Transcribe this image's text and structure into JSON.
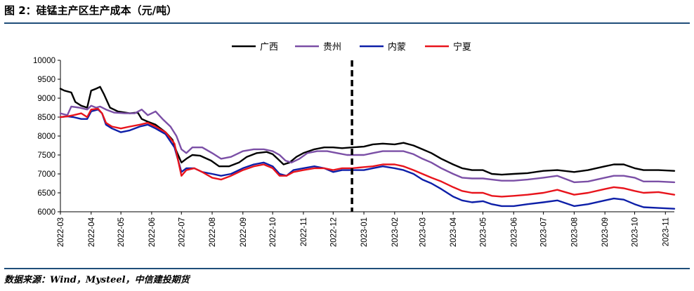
{
  "figure": {
    "title": "图 2：硅锰主产区生产成本（元/吨）",
    "source": "数据来源：Wind，Mysteel，中信建投期货"
  },
  "chart_data": {
    "type": "line",
    "title": "",
    "xlabel": "",
    "ylabel": "",
    "ylim": [
      6000,
      10000
    ],
    "y_ticks": [
      "6000",
      "6500",
      "7000",
      "7500",
      "8000",
      "8500",
      "9000",
      "9500",
      "10000"
    ],
    "x_ticks": [
      "2022-03",
      "2022-04",
      "2022-05",
      "2022-06",
      "2022-07",
      "2022-08",
      "2022-09",
      "2022-10",
      "2022-11",
      "2022-12",
      "2023-01",
      "2023-02",
      "2023-03",
      "2023-04",
      "2023-05",
      "2023-06",
      "2023-07",
      "2023-08",
      "2023-09",
      "2023-10",
      "2023-11"
    ],
    "x_range": [
      "2022-03-01",
      "2023-11-10"
    ],
    "grid": false,
    "legend_position": "top-center",
    "annotations": [
      {
        "type": "vertical-dashed-line",
        "x": "2022-12-20"
      }
    ],
    "series": [
      {
        "name": "广西",
        "color": "#000000",
        "points": [
          [
            "2022-03-01",
            9250
          ],
          [
            "2022-03-05",
            9200
          ],
          [
            "2022-03-12",
            9150
          ],
          [
            "2022-03-16",
            8900
          ],
          [
            "2022-03-22",
            8800
          ],
          [
            "2022-03-28",
            8750
          ],
          [
            "2022-04-01",
            9200
          ],
          [
            "2022-04-06",
            9250
          ],
          [
            "2022-04-10",
            9300
          ],
          [
            "2022-04-14",
            9100
          ],
          [
            "2022-04-20",
            8750
          ],
          [
            "2022-04-28",
            8650
          ],
          [
            "2022-05-10",
            8600
          ],
          [
            "2022-05-18",
            8620
          ],
          [
            "2022-05-22",
            8450
          ],
          [
            "2022-05-28",
            8380
          ],
          [
            "2022-06-05",
            8300
          ],
          [
            "2022-06-15",
            8100
          ],
          [
            "2022-06-22",
            7900
          ],
          [
            "2022-06-26",
            7600
          ],
          [
            "2022-07-01",
            7300
          ],
          [
            "2022-07-06",
            7400
          ],
          [
            "2022-07-12",
            7500
          ],
          [
            "2022-07-20",
            7480
          ],
          [
            "2022-07-31",
            7350
          ],
          [
            "2022-08-08",
            7200
          ],
          [
            "2022-08-18",
            7200
          ],
          [
            "2022-08-28",
            7300
          ],
          [
            "2022-09-05",
            7450
          ],
          [
            "2022-09-15",
            7550
          ],
          [
            "2022-09-25",
            7580
          ],
          [
            "2022-10-01",
            7520
          ],
          [
            "2022-10-06",
            7400
          ],
          [
            "2022-10-12",
            7250
          ],
          [
            "2022-10-18",
            7300
          ],
          [
            "2022-10-25",
            7450
          ],
          [
            "2022-11-01",
            7550
          ],
          [
            "2022-11-12",
            7650
          ],
          [
            "2022-11-22",
            7700
          ],
          [
            "2022-12-01",
            7700
          ],
          [
            "2022-12-10",
            7680
          ],
          [
            "2022-12-20",
            7700
          ],
          [
            "2023-01-01",
            7720
          ],
          [
            "2023-01-10",
            7780
          ],
          [
            "2023-01-20",
            7800
          ],
          [
            "2023-02-01",
            7780
          ],
          [
            "2023-02-10",
            7820
          ],
          [
            "2023-02-20",
            7750
          ],
          [
            "2023-03-01",
            7650
          ],
          [
            "2023-03-10",
            7550
          ],
          [
            "2023-03-20",
            7400
          ],
          [
            "2023-04-01",
            7250
          ],
          [
            "2023-04-10",
            7150
          ],
          [
            "2023-04-20",
            7100
          ],
          [
            "2023-05-01",
            7100
          ],
          [
            "2023-05-10",
            7000
          ],
          [
            "2023-05-20",
            6980
          ],
          [
            "2023-06-01",
            7000
          ],
          [
            "2023-06-15",
            7020
          ],
          [
            "2023-07-01",
            7080
          ],
          [
            "2023-07-15",
            7100
          ],
          [
            "2023-08-01",
            7050
          ],
          [
            "2023-08-15",
            7100
          ],
          [
            "2023-09-01",
            7200
          ],
          [
            "2023-09-10",
            7250
          ],
          [
            "2023-09-20",
            7250
          ],
          [
            "2023-10-01",
            7150
          ],
          [
            "2023-10-10",
            7100
          ],
          [
            "2023-10-25",
            7100
          ],
          [
            "2023-11-10",
            7080
          ]
        ]
      },
      {
        "name": "贵州",
        "color": "#7b4fa6",
        "points": [
          [
            "2022-03-01",
            8600
          ],
          [
            "2022-03-08",
            8550
          ],
          [
            "2022-03-12",
            8780
          ],
          [
            "2022-03-20",
            8750
          ],
          [
            "2022-03-28",
            8700
          ],
          [
            "2022-04-01",
            8800
          ],
          [
            "2022-04-06",
            8750
          ],
          [
            "2022-04-10",
            8780
          ],
          [
            "2022-04-16",
            8700
          ],
          [
            "2022-04-24",
            8620
          ],
          [
            "2022-05-05",
            8600
          ],
          [
            "2022-05-15",
            8600
          ],
          [
            "2022-05-22",
            8700
          ],
          [
            "2022-05-28",
            8550
          ],
          [
            "2022-06-05",
            8650
          ],
          [
            "2022-06-12",
            8450
          ],
          [
            "2022-06-20",
            8250
          ],
          [
            "2022-06-26",
            8000
          ],
          [
            "2022-07-01",
            7650
          ],
          [
            "2022-07-06",
            7550
          ],
          [
            "2022-07-12",
            7700
          ],
          [
            "2022-07-22",
            7700
          ],
          [
            "2022-08-01",
            7550
          ],
          [
            "2022-08-10",
            7400
          ],
          [
            "2022-08-20",
            7450
          ],
          [
            "2022-09-01",
            7600
          ],
          [
            "2022-09-12",
            7650
          ],
          [
            "2022-09-22",
            7650
          ],
          [
            "2022-10-01",
            7600
          ],
          [
            "2022-10-08",
            7500
          ],
          [
            "2022-10-14",
            7350
          ],
          [
            "2022-10-20",
            7300
          ],
          [
            "2022-10-28",
            7400
          ],
          [
            "2022-11-05",
            7550
          ],
          [
            "2022-11-15",
            7600
          ],
          [
            "2022-11-25",
            7600
          ],
          [
            "2022-12-05",
            7550
          ],
          [
            "2022-12-15",
            7500
          ],
          [
            "2022-12-22",
            7500
          ],
          [
            "2023-01-01",
            7500
          ],
          [
            "2023-01-10",
            7550
          ],
          [
            "2023-01-20",
            7600
          ],
          [
            "2023-02-01",
            7600
          ],
          [
            "2023-02-10",
            7600
          ],
          [
            "2023-02-20",
            7520
          ],
          [
            "2023-03-01",
            7400
          ],
          [
            "2023-03-10",
            7300
          ],
          [
            "2023-03-20",
            7150
          ],
          [
            "2023-04-01",
            7000
          ],
          [
            "2023-04-10",
            6900
          ],
          [
            "2023-04-20",
            6880
          ],
          [
            "2023-05-01",
            6880
          ],
          [
            "2023-05-10",
            6850
          ],
          [
            "2023-05-20",
            6820
          ],
          [
            "2023-06-01",
            6820
          ],
          [
            "2023-06-15",
            6850
          ],
          [
            "2023-07-01",
            6900
          ],
          [
            "2023-07-15",
            6950
          ],
          [
            "2023-08-01",
            6780
          ],
          [
            "2023-08-15",
            6800
          ],
          [
            "2023-09-01",
            6900
          ],
          [
            "2023-09-10",
            6950
          ],
          [
            "2023-09-20",
            6950
          ],
          [
            "2023-10-01",
            6900
          ],
          [
            "2023-10-10",
            6800
          ],
          [
            "2023-10-25",
            6800
          ],
          [
            "2023-11-10",
            6780
          ]
        ]
      },
      {
        "name": "内蒙",
        "color": "#0d1fa8",
        "points": [
          [
            "2022-03-01",
            8500
          ],
          [
            "2022-03-08",
            8520
          ],
          [
            "2022-03-14",
            8500
          ],
          [
            "2022-03-22",
            8450
          ],
          [
            "2022-03-28",
            8450
          ],
          [
            "2022-04-01",
            8650
          ],
          [
            "2022-04-08",
            8700
          ],
          [
            "2022-04-12",
            8600
          ],
          [
            "2022-04-16",
            8300
          ],
          [
            "2022-04-22",
            8200
          ],
          [
            "2022-05-01",
            8100
          ],
          [
            "2022-05-10",
            8150
          ],
          [
            "2022-05-20",
            8250
          ],
          [
            "2022-05-28",
            8300
          ],
          [
            "2022-06-05",
            8200
          ],
          [
            "2022-06-15",
            8050
          ],
          [
            "2022-06-24",
            7700
          ],
          [
            "2022-07-01",
            7050
          ],
          [
            "2022-07-06",
            7150
          ],
          [
            "2022-07-14",
            7150
          ],
          [
            "2022-07-22",
            7050
          ],
          [
            "2022-08-01",
            7000
          ],
          [
            "2022-08-10",
            6950
          ],
          [
            "2022-08-20",
            7000
          ],
          [
            "2022-09-01",
            7150
          ],
          [
            "2022-09-12",
            7250
          ],
          [
            "2022-09-22",
            7300
          ],
          [
            "2022-10-01",
            7200
          ],
          [
            "2022-10-08",
            7000
          ],
          [
            "2022-10-15",
            6950
          ],
          [
            "2022-10-22",
            7100
          ],
          [
            "2022-11-01",
            7150
          ],
          [
            "2022-11-12",
            7200
          ],
          [
            "2022-11-22",
            7150
          ],
          [
            "2022-12-01",
            7050
          ],
          [
            "2022-12-10",
            7100
          ],
          [
            "2022-12-20",
            7100
          ],
          [
            "2023-01-01",
            7100
          ],
          [
            "2023-01-10",
            7150
          ],
          [
            "2023-01-20",
            7200
          ],
          [
            "2023-02-01",
            7150
          ],
          [
            "2023-02-10",
            7100
          ],
          [
            "2023-02-20",
            7000
          ],
          [
            "2023-03-01",
            6850
          ],
          [
            "2023-03-10",
            6750
          ],
          [
            "2023-03-20",
            6600
          ],
          [
            "2023-04-01",
            6400
          ],
          [
            "2023-04-10",
            6300
          ],
          [
            "2023-04-20",
            6250
          ],
          [
            "2023-05-01",
            6280
          ],
          [
            "2023-05-10",
            6200
          ],
          [
            "2023-05-20",
            6150
          ],
          [
            "2023-06-01",
            6150
          ],
          [
            "2023-06-15",
            6200
          ],
          [
            "2023-07-01",
            6250
          ],
          [
            "2023-07-15",
            6300
          ],
          [
            "2023-08-01",
            6150
          ],
          [
            "2023-08-15",
            6200
          ],
          [
            "2023-09-01",
            6300
          ],
          [
            "2023-09-10",
            6350
          ],
          [
            "2023-09-20",
            6320
          ],
          [
            "2023-10-01",
            6200
          ],
          [
            "2023-10-10",
            6120
          ],
          [
            "2023-10-25",
            6100
          ],
          [
            "2023-11-10",
            6080
          ]
        ]
      },
      {
        "name": "宁夏",
        "color": "#e8141c",
        "points": [
          [
            "2022-03-01",
            8500
          ],
          [
            "2022-03-08",
            8520
          ],
          [
            "2022-03-14",
            8550
          ],
          [
            "2022-03-22",
            8600
          ],
          [
            "2022-03-28",
            8500
          ],
          [
            "2022-04-01",
            8700
          ],
          [
            "2022-04-08",
            8720
          ],
          [
            "2022-04-12",
            8600
          ],
          [
            "2022-04-16",
            8350
          ],
          [
            "2022-04-22",
            8250
          ],
          [
            "2022-05-01",
            8200
          ],
          [
            "2022-05-10",
            8250
          ],
          [
            "2022-05-20",
            8300
          ],
          [
            "2022-05-28",
            8350
          ],
          [
            "2022-06-05",
            8250
          ],
          [
            "2022-06-15",
            8100
          ],
          [
            "2022-06-24",
            7800
          ],
          [
            "2022-07-01",
            6950
          ],
          [
            "2022-07-06",
            7100
          ],
          [
            "2022-07-14",
            7150
          ],
          [
            "2022-07-22",
            7050
          ],
          [
            "2022-08-01",
            6900
          ],
          [
            "2022-08-10",
            6850
          ],
          [
            "2022-08-20",
            6950
          ],
          [
            "2022-09-01",
            7100
          ],
          [
            "2022-09-12",
            7200
          ],
          [
            "2022-09-22",
            7250
          ],
          [
            "2022-10-01",
            7150
          ],
          [
            "2022-10-08",
            6950
          ],
          [
            "2022-10-15",
            6950
          ],
          [
            "2022-10-22",
            7050
          ],
          [
            "2022-11-01",
            7100
          ],
          [
            "2022-11-12",
            7150
          ],
          [
            "2022-11-22",
            7150
          ],
          [
            "2022-12-01",
            7100
          ],
          [
            "2022-12-10",
            7150
          ],
          [
            "2022-12-20",
            7150
          ],
          [
            "2023-01-01",
            7180
          ],
          [
            "2023-01-10",
            7200
          ],
          [
            "2023-01-20",
            7250
          ],
          [
            "2023-02-01",
            7250
          ],
          [
            "2023-02-10",
            7200
          ],
          [
            "2023-02-20",
            7100
          ],
          [
            "2023-03-01",
            7000
          ],
          [
            "2023-03-10",
            6900
          ],
          [
            "2023-03-20",
            6800
          ],
          [
            "2023-04-01",
            6650
          ],
          [
            "2023-04-10",
            6550
          ],
          [
            "2023-04-20",
            6500
          ],
          [
            "2023-05-01",
            6500
          ],
          [
            "2023-05-10",
            6420
          ],
          [
            "2023-05-20",
            6400
          ],
          [
            "2023-06-01",
            6420
          ],
          [
            "2023-06-15",
            6450
          ],
          [
            "2023-07-01",
            6500
          ],
          [
            "2023-07-15",
            6580
          ],
          [
            "2023-08-01",
            6450
          ],
          [
            "2023-08-15",
            6500
          ],
          [
            "2023-09-01",
            6600
          ],
          [
            "2023-09-10",
            6650
          ],
          [
            "2023-09-20",
            6620
          ],
          [
            "2023-10-01",
            6550
          ],
          [
            "2023-10-10",
            6500
          ],
          [
            "2023-10-25",
            6520
          ],
          [
            "2023-11-10",
            6450
          ]
        ]
      }
    ]
  }
}
